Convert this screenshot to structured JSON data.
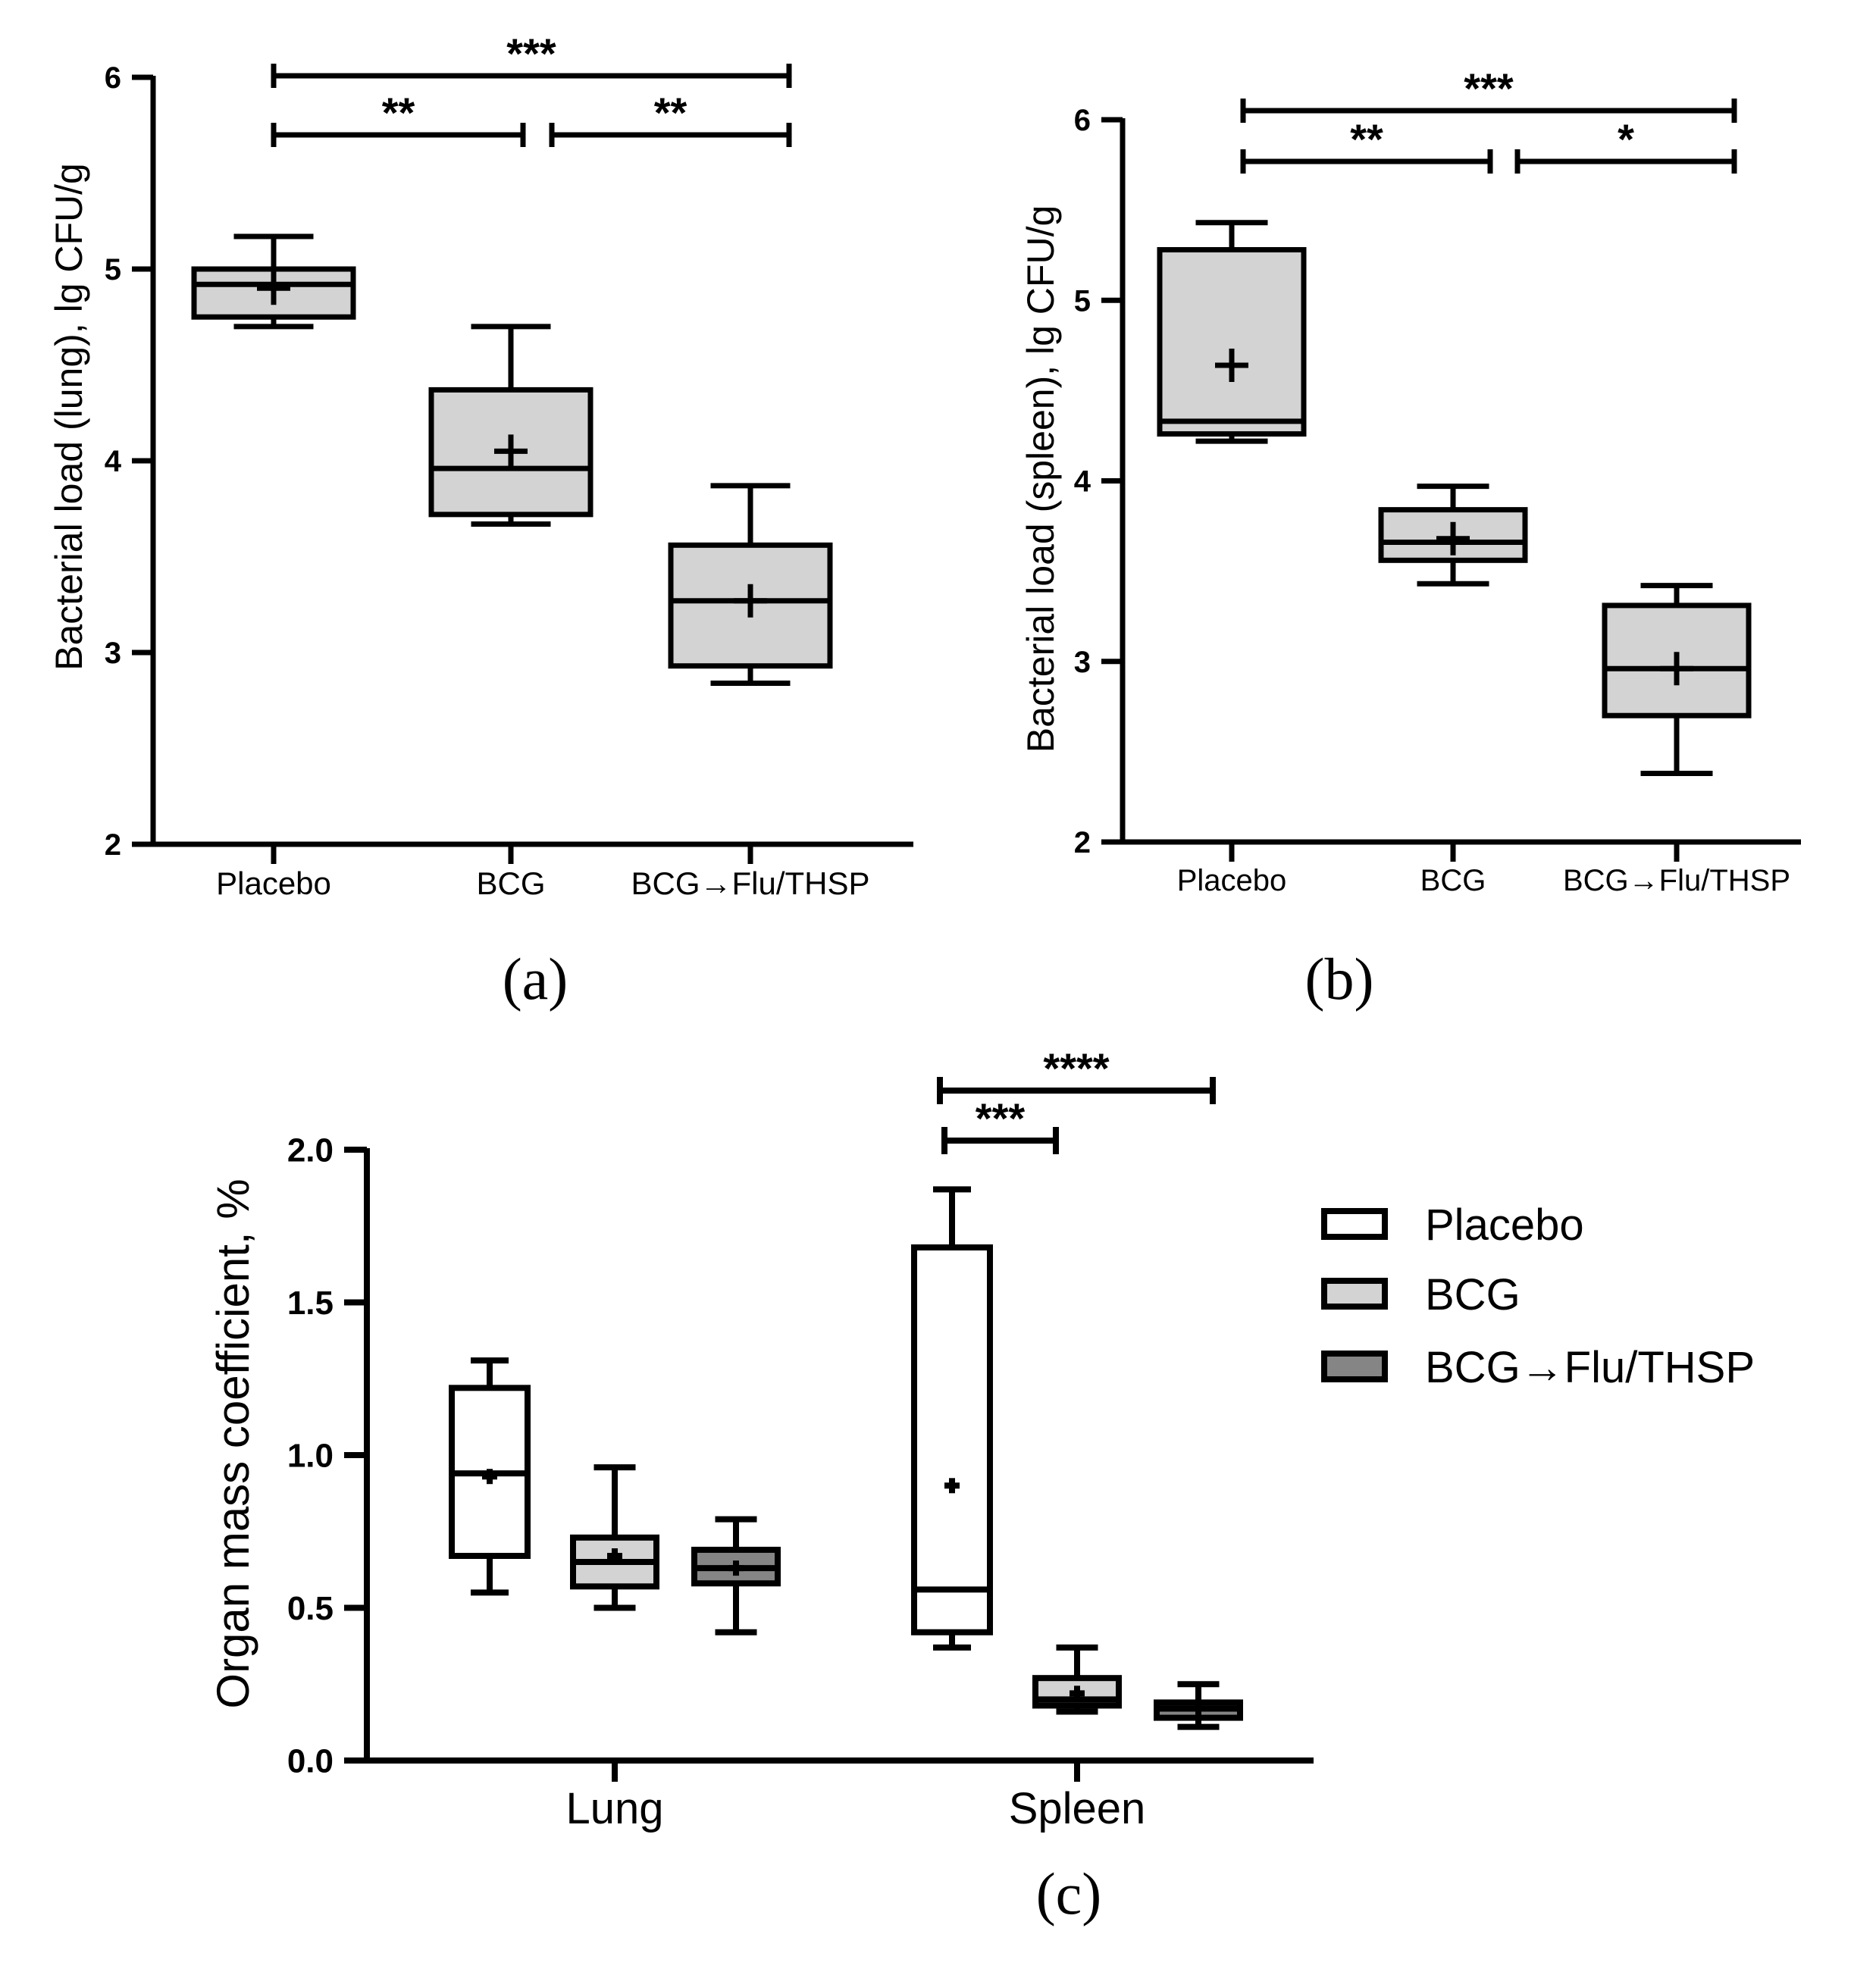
{
  "chart_data": [
    {
      "panel": "a",
      "panel_label": "(a)",
      "type": "box",
      "ylabel": "Bacterial load (lung), lg CFU/g",
      "ylim": [
        2,
        6
      ],
      "yticks": [
        "2",
        "3",
        "4",
        "5",
        "6"
      ],
      "categories": [
        "Placebo",
        "BCG",
        "BCG→Flu/THSP"
      ],
      "boxes": [
        {
          "group": "Placebo",
          "min": 4.7,
          "q1": 4.75,
          "median": 4.92,
          "q3": 5.0,
          "max": 5.17,
          "mean": 4.9
        },
        {
          "group": "BCG",
          "min": 3.67,
          "q1": 3.72,
          "median": 3.96,
          "q3": 4.37,
          "max": 4.7,
          "mean": 4.05
        },
        {
          "group": "BCG→Flu/THSP",
          "min": 2.84,
          "q1": 2.93,
          "median": 3.27,
          "q3": 3.56,
          "max": 3.87,
          "mean": 3.27
        }
      ],
      "significance": [
        {
          "from": 0,
          "to": 2,
          "label": "***",
          "level": 6.0
        },
        {
          "from": 0,
          "to": 1,
          "label": "**",
          "level": 5.7
        },
        {
          "from": 1,
          "to": 2,
          "label": "**",
          "level": 5.7
        }
      ]
    },
    {
      "panel": "b",
      "panel_label": "(b)",
      "type": "box",
      "ylabel": "Bacterial load (spleen), lg CFU/g",
      "ylim": [
        2,
        6
      ],
      "yticks": [
        "2",
        "3",
        "4",
        "5",
        "6"
      ],
      "categories": [
        "Placebo",
        "BCG",
        "BCG→Flu/THSP"
      ],
      "boxes": [
        {
          "group": "Placebo",
          "min": 4.22,
          "q1": 4.26,
          "median": 4.33,
          "q3": 5.28,
          "max": 5.43,
          "mean": 4.64
        },
        {
          "group": "BCG",
          "min": 3.43,
          "q1": 3.56,
          "median": 3.66,
          "q3": 3.84,
          "max": 3.97,
          "mean": 3.68
        },
        {
          "group": "BCG→Flu/THSP",
          "min": 2.38,
          "q1": 2.7,
          "median": 2.96,
          "q3": 3.31,
          "max": 3.42,
          "mean": 2.96
        }
      ],
      "significance": [
        {
          "from": 0,
          "to": 2,
          "label": "***",
          "level": 6.06
        },
        {
          "from": 0,
          "to": 1,
          "label": "**",
          "level": 5.76
        },
        {
          "from": 1,
          "to": 2,
          "label": "*",
          "level": 5.76
        }
      ]
    },
    {
      "panel": "c",
      "panel_label": "(c)",
      "type": "box",
      "ylabel": "Organ mass coefficient, %",
      "ylim": [
        0,
        2.0
      ],
      "yticks": [
        "0.0",
        "0.5",
        "1.0",
        "1.5",
        "2.0"
      ],
      "categories": [
        "Lung",
        "Spleen"
      ],
      "series": [
        {
          "name": "Placebo",
          "color": "#ffffff",
          "boxes": [
            {
              "group": "Lung",
              "min": 0.55,
              "q1": 0.67,
              "median": 0.94,
              "q3": 1.22,
              "max": 1.31,
              "mean": 0.93
            },
            {
              "group": "Spleen",
              "min": 0.37,
              "q1": 0.42,
              "median": 0.56,
              "q3": 1.68,
              "max": 1.87,
              "mean": 0.9
            }
          ]
        },
        {
          "name": "BCG",
          "color": "#d3d3d3",
          "boxes": [
            {
              "group": "Lung",
              "min": 0.5,
              "q1": 0.57,
              "median": 0.65,
              "q3": 0.73,
              "max": 0.96,
              "mean": 0.67
            },
            {
              "group": "Spleen",
              "min": 0.16,
              "q1": 0.18,
              "median": 0.2,
              "q3": 0.27,
              "max": 0.37,
              "mean": 0.22
            }
          ]
        },
        {
          "name": "BCG→Flu/THSP",
          "color": "#858585",
          "boxes": [
            {
              "group": "Lung",
              "min": 0.42,
              "q1": 0.58,
              "median": 0.63,
              "q3": 0.69,
              "max": 0.79,
              "mean": 0.63
            },
            {
              "group": "Spleen",
              "min": 0.11,
              "q1": 0.14,
              "median": 0.17,
              "q3": 0.19,
              "max": 0.25,
              "mean": 0.17
            }
          ]
        }
      ],
      "significance": [
        {
          "group": "Spleen",
          "from": 0,
          "to": 2,
          "label": "****",
          "level": 2.12
        },
        {
          "group": "Spleen",
          "from": 0,
          "to": 1,
          "label": "***",
          "level": 1.99
        }
      ],
      "legend": [
        "Placebo",
        "BCG",
        "BCG→Flu/THSP"
      ],
      "legend_position": "right"
    }
  ]
}
